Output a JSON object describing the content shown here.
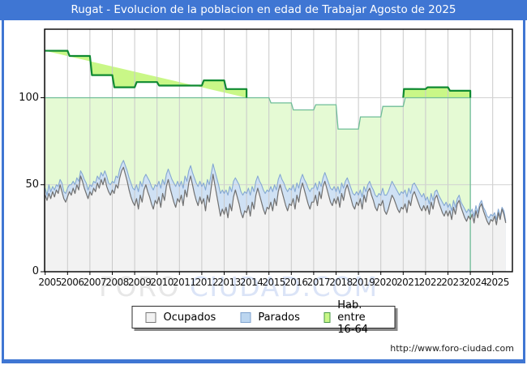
{
  "window": {
    "title": "Rugat - Evolucion de la poblacion en edad de Trabajar Agosto de 2025",
    "url": "http://www.foro-ciudad.com"
  },
  "watermark": {
    "part1": "FORO",
    "part2": "CIUDAD.COM"
  },
  "legend": {
    "items": [
      {
        "label": "Ocupados",
        "fill": "#f2f2f2",
        "border": "#777777"
      },
      {
        "label": "Parados",
        "fill": "#bcd6f0",
        "border": "#7fa3cf"
      },
      {
        "label": "Hab. entre 16-64",
        "fill": "#c9f787",
        "border": "#4a9a4a"
      }
    ]
  },
  "colors": {
    "frame_blue": "#3f76d3",
    "grid": "#c9c9c9",
    "plot_border": "#000000",
    "hab_fill_above100": "#c9f787",
    "hab_fill_below100": "#e5fad4",
    "hab_stroke_dark": "#0f8a32",
    "hab_stroke_light": "#6fbd98",
    "parados_fill": "#cfe1f4",
    "parados_stroke": "#85a8d2",
    "ocupados_fill": "#f2f2f2",
    "ocupados_stroke": "#707070"
  },
  "chart_data": {
    "type": "area",
    "title": "Rugat - Evolucion de la poblacion en edad de Trabajar Agosto de 2025",
    "xlabel": "",
    "ylabel": "",
    "ylim": [
      0,
      139
    ],
    "yticks": [
      0,
      50,
      100
    ],
    "xticks": [
      2005,
      2006,
      2007,
      2008,
      2009,
      2010,
      2011,
      2012,
      2013,
      2014,
      2015,
      2016,
      2017,
      2018,
      2019,
      2020,
      2021,
      2022,
      2023,
      2024,
      2025
    ],
    "legend_position": "bottom",
    "grid": true,
    "series": [
      {
        "name": "Hab. entre 16-64",
        "style": "yearly-step",
        "start_year": 2005,
        "values": [
          127,
          124,
          113,
          106,
          109,
          107,
          107,
          110,
          105,
          100,
          97,
          93,
          96,
          82,
          89,
          95,
          105,
          106,
          104
        ]
      },
      {
        "name": "Parados",
        "style": "monthly-stacked-on-ocupados",
        "start_year": 2005,
        "monthly": [
          [
            4,
            3,
            5,
            4,
            3,
            4,
            3,
            4,
            3,
            5,
            4,
            5
          ],
          [
            5,
            4,
            6,
            4,
            5,
            4,
            5,
            3,
            4,
            5,
            6,
            5
          ],
          [
            4,
            5,
            4,
            5,
            4,
            5,
            4,
            5,
            4,
            6,
            5,
            6
          ],
          [
            5,
            6,
            5,
            6,
            5,
            4,
            4,
            5,
            6,
            7,
            8,
            8
          ],
          [
            9,
            8,
            10,
            8,
            9,
            7,
            6,
            8,
            9,
            10,
            11,
            9
          ],
          [
            10,
            9,
            11,
            8,
            9,
            7,
            6,
            8,
            9,
            11,
            12,
            10
          ],
          [
            9,
            8,
            10,
            8,
            9,
            7,
            6,
            7,
            9,
            10,
            11,
            9
          ],
          [
            10,
            9,
            12,
            9,
            10,
            8,
            6,
            8,
            10,
            12,
            13,
            11
          ],
          [
            12,
            10,
            13,
            10,
            11,
            9,
            7,
            9,
            11,
            12,
            13,
            11
          ],
          [
            11,
            10,
            12,
            9,
            10,
            8,
            7,
            8,
            10,
            11,
            12,
            10
          ],
          [
            10,
            9,
            11,
            8,
            9,
            7,
            6,
            7,
            9,
            10,
            11,
            9
          ],
          [
            9,
            8,
            10,
            7,
            8,
            6,
            5,
            6,
            8,
            9,
            10,
            8
          ],
          [
            8,
            7,
            9,
            6,
            7,
            5,
            5,
            6,
            7,
            8,
            9,
            7
          ],
          [
            7,
            6,
            8,
            6,
            7,
            5,
            4,
            5,
            6,
            7,
            8,
            6
          ],
          [
            6,
            5,
            7,
            5,
            6,
            4,
            4,
            5,
            6,
            7,
            8,
            6
          ],
          [
            6,
            7,
            9,
            11,
            10,
            9,
            8,
            8,
            9,
            10,
            10,
            9
          ],
          [
            9,
            8,
            9,
            7,
            7,
            6,
            5,
            6,
            7,
            8,
            8,
            7
          ],
          [
            6,
            5,
            6,
            5,
            5,
            4,
            3,
            4,
            5,
            6,
            6,
            5
          ],
          [
            5,
            4,
            5,
            4,
            4,
            3,
            3,
            3,
            4,
            5,
            5,
            4
          ],
          [
            4,
            3,
            4,
            3,
            3,
            2,
            2,
            2,
            3,
            3,
            4,
            3
          ],
          [
            3,
            2,
            3,
            2,
            2,
            1,
            2,
            1
          ]
        ]
      },
      {
        "name": "Ocupados",
        "style": "monthly",
        "start_year": 2005,
        "monthly": [
          [
            44,
            41,
            45,
            42,
            46,
            43,
            47,
            45,
            50,
            46,
            42,
            40
          ],
          [
            43,
            46,
            44,
            48,
            45,
            50,
            47,
            55,
            52,
            48,
            45,
            42
          ],
          [
            46,
            44,
            48,
            46,
            51,
            48,
            53,
            50,
            54,
            49,
            46,
            44
          ],
          [
            47,
            45,
            50,
            48,
            54,
            58,
            60,
            56,
            52,
            47,
            43,
            40
          ],
          [
            38,
            42,
            36,
            44,
            40,
            47,
            50,
            46,
            43,
            39,
            36,
            41
          ],
          [
            39,
            43,
            37,
            45,
            41,
            49,
            53,
            48,
            44,
            40,
            37,
            42
          ],
          [
            40,
            44,
            38,
            47,
            43,
            51,
            55,
            50,
            45,
            41,
            38,
            43
          ],
          [
            39,
            42,
            35,
            44,
            40,
            48,
            56,
            50,
            44,
            38,
            32,
            36
          ],
          [
            33,
            37,
            31,
            39,
            35,
            43,
            47,
            43,
            39,
            34,
            31,
            35
          ],
          [
            34,
            38,
            32,
            40,
            36,
            44,
            48,
            44,
            40,
            36,
            33,
            37
          ],
          [
            36,
            40,
            35,
            42,
            38,
            46,
            50,
            46,
            42,
            38,
            35,
            39
          ],
          [
            38,
            42,
            36,
            44,
            40,
            47,
            51,
            47,
            43,
            39,
            36,
            40
          ],
          [
            40,
            44,
            38,
            46,
            42,
            49,
            52,
            48,
            44,
            40,
            38,
            42
          ],
          [
            39,
            43,
            37,
            45,
            41,
            47,
            50,
            46,
            42,
            38,
            36,
            40
          ],
          [
            38,
            42,
            36,
            44,
            40,
            46,
            48,
            44,
            41,
            37,
            35,
            39
          ],
          [
            38,
            41,
            35,
            33,
            36,
            40,
            44,
            42,
            39,
            36,
            34,
            37
          ],
          [
            36,
            39,
            34,
            41,
            38,
            44,
            46,
            43,
            40,
            37,
            35,
            38
          ],
          [
            35,
            38,
            33,
            40,
            36,
            42,
            44,
            40,
            37,
            34,
            32,
            35
          ],
          [
            32,
            35,
            30,
            37,
            33,
            39,
            41,
            37,
            34,
            31,
            29,
            32
          ],
          [
            30,
            33,
            28,
            35,
            31,
            37,
            39,
            35,
            32,
            29,
            27,
            30
          ],
          [
            29,
            32,
            27,
            34,
            30,
            36,
            33,
            28
          ]
        ]
      }
    ]
  }
}
